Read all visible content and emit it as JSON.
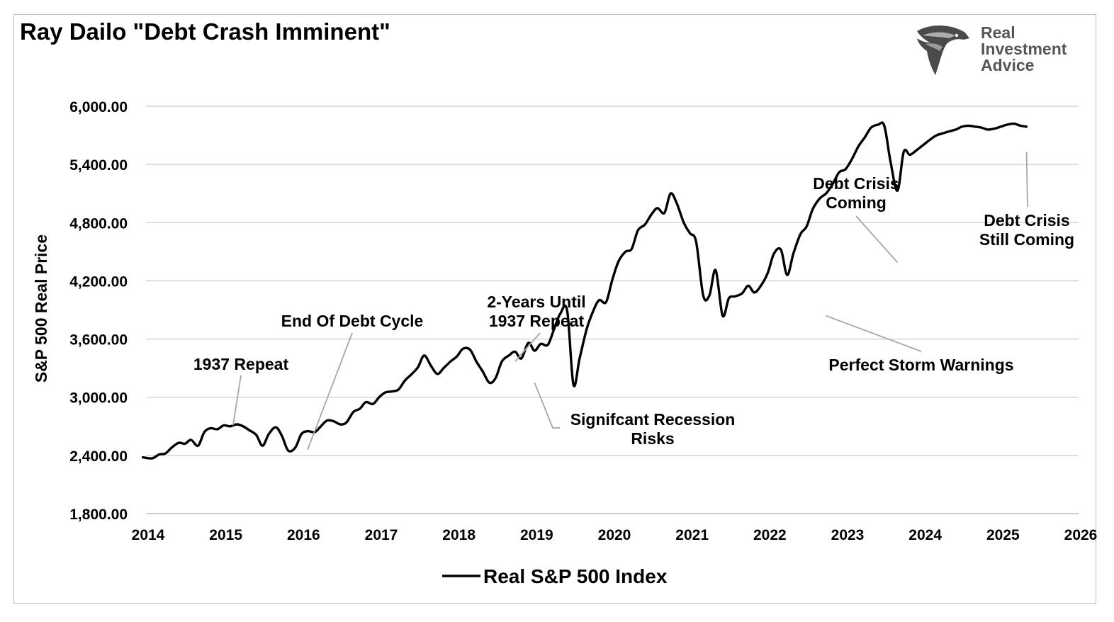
{
  "title": "Ray Dailo \"Debt Crash Imminent\"",
  "logo": {
    "icon": "eagle-head-icon",
    "lines": [
      "Real",
      "Investment",
      "Advice"
    ],
    "color": "#555555"
  },
  "chart_data": {
    "type": "line",
    "title": "Ray Dailo \"Debt Crash Imminent\"",
    "xlabel": "",
    "ylabel": "S&P 500 Real Price",
    "xlim": [
      2014,
      2026
    ],
    "ylim": [
      1800,
      6000
    ],
    "xticks": [
      2014,
      2015,
      2016,
      2017,
      2018,
      2019,
      2020,
      2021,
      2022,
      2023,
      2024,
      2025,
      2026
    ],
    "xtick_labels": [
      "2014",
      "2015",
      "2016",
      "2017",
      "2018",
      "2019",
      "2020",
      "2021",
      "2022",
      "2023",
      "2024",
      "2025",
      "2026"
    ],
    "yticks": [
      1800,
      2400,
      3000,
      3600,
      4200,
      4800,
      5400,
      6000
    ],
    "ytick_labels": [
      "1,800.00",
      "2,400.00",
      "3,000.00",
      "3,600.00",
      "4,200.00",
      "4,800.00",
      "5,400.00",
      "6,000.00"
    ],
    "grid": "horizontal",
    "legend_position": "bottom-center",
    "series": [
      {
        "name": "Real S&P 500 Index",
        "color": "#000000",
        "x": [
          2013.96,
          2014.08,
          2014.17,
          2014.25,
          2014.33,
          2014.42,
          2014.5,
          2014.58,
          2014.67,
          2014.75,
          2014.83,
          2014.92,
          2015.0,
          2015.08,
          2015.17,
          2015.25,
          2015.33,
          2015.42,
          2015.5,
          2015.58,
          2015.67,
          2015.75,
          2015.83,
          2015.92,
          2016.0,
          2016.08,
          2016.17,
          2016.25,
          2016.33,
          2016.42,
          2016.5,
          2016.58,
          2016.67,
          2016.75,
          2016.83,
          2016.92,
          2017.0,
          2017.08,
          2017.17,
          2017.25,
          2017.33,
          2017.42,
          2017.5,
          2017.58,
          2017.67,
          2017.75,
          2017.83,
          2017.92,
          2018.0,
          2018.08,
          2018.17,
          2018.25,
          2018.33,
          2018.42,
          2018.5,
          2018.58,
          2018.67,
          2018.75,
          2018.83,
          2018.92,
          2019.0,
          2019.08,
          2019.17,
          2019.25,
          2019.33,
          2019.42,
          2019.5,
          2019.58,
          2019.67,
          2019.75,
          2019.83,
          2019.92,
          2020.0,
          2020.08,
          2020.17,
          2020.25,
          2020.33,
          2020.42,
          2020.5,
          2020.58,
          2020.67,
          2020.75,
          2020.83,
          2020.92,
          2021.0,
          2021.08,
          2021.17,
          2021.25,
          2021.33,
          2021.42,
          2021.5,
          2021.58,
          2021.67,
          2021.75,
          2021.83,
          2021.92,
          2022.0,
          2022.08,
          2022.17,
          2022.25,
          2022.33,
          2022.42,
          2022.5,
          2022.58,
          2022.67,
          2022.75,
          2022.83,
          2022.92,
          2023.0,
          2023.08,
          2023.17,
          2023.25,
          2023.33,
          2023.42,
          2023.5,
          2023.58,
          2023.67,
          2023.75,
          2023.83,
          2023.92,
          2024.0,
          2024.08,
          2024.17,
          2024.25,
          2024.33,
          2024.42,
          2024.5,
          2024.58,
          2024.67,
          2024.75,
          2024.83,
          2024.92,
          2025.0,
          2025.08,
          2025.17,
          2025.25,
          2025.33
        ],
        "y": [
          2380,
          2370,
          2410,
          2420,
          2480,
          2530,
          2520,
          2560,
          2500,
          2640,
          2680,
          2670,
          2710,
          2700,
          2720,
          2700,
          2660,
          2610,
          2500,
          2620,
          2690,
          2600,
          2450,
          2480,
          2620,
          2650,
          2640,
          2700,
          2760,
          2750,
          2720,
          2740,
          2850,
          2880,
          2950,
          2930,
          3000,
          3050,
          3060,
          3080,
          3170,
          3240,
          3310,
          3430,
          3320,
          3240,
          3300,
          3370,
          3420,
          3500,
          3490,
          3370,
          3270,
          3150,
          3200,
          3370,
          3430,
          3470,
          3400,
          3560,
          3480,
          3550,
          3540,
          3700,
          3860,
          3890,
          3130,
          3400,
          3700,
          3880,
          4000,
          3980,
          4210,
          4400,
          4500,
          4530,
          4720,
          4780,
          4880,
          4950,
          4900,
          5100,
          5000,
          4800,
          4690,
          4600,
          4050,
          4050,
          4310,
          3840,
          4020,
          4040,
          4070,
          4150,
          4080,
          4160,
          4280,
          4480,
          4520,
          4260,
          4480,
          4680,
          4760,
          4940,
          5050,
          5100,
          5190,
          5320,
          5350,
          5450,
          5590,
          5680,
          5780,
          5810,
          5800,
          5430,
          5130,
          5530,
          5500,
          5550,
          5600,
          5650,
          5700,
          5720,
          5740,
          5760,
          5790,
          5800,
          5790,
          5780,
          5760,
          5770,
          5790,
          5810,
          5820,
          5800,
          5790
        ],
        "points_note": ""
      }
    ],
    "annotations": [
      {
        "id": "1937-repeat",
        "lines": [
          "1937 Repeat"
        ],
        "x": 2015.12,
        "y": 2710
      },
      {
        "id": "end-of-debt-cycle",
        "lines": [
          "End Of Debt Cycle"
        ],
        "x": 2016.08,
        "y": 2460
      },
      {
        "id": "2-years-until",
        "lines": [
          "2-Years Until",
          "1937 Repeat"
        ],
        "x": 2018.75,
        "y": 3370
      },
      {
        "id": "significant-recession",
        "lines": [
          "Signifcant Recession",
          "Risks"
        ],
        "x": 2019.0,
        "y": 3150
      },
      {
        "id": "debt-crisis-coming",
        "lines": [
          "Debt Crisis",
          "Coming"
        ],
        "x": 2023.67,
        "y": 4390
      },
      {
        "id": "perfect-storm",
        "lines": [
          "Perfect Storm Warnings"
        ],
        "x": 2022.75,
        "y": 3840
      },
      {
        "id": "debt-crisis-still-coming",
        "lines": [
          "Debt Crisis",
          "Still Coming"
        ],
        "x": 2025.33,
        "y": 5530
      }
    ]
  }
}
